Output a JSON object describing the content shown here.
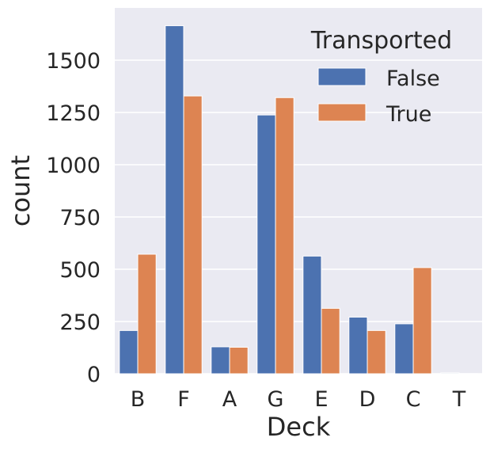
{
  "chart_data": {
    "type": "bar",
    "title": "",
    "xlabel": "Deck",
    "ylabel": "count",
    "categories": [
      "B",
      "F",
      "A",
      "G",
      "E",
      "D",
      "C",
      "T"
    ],
    "series": [
      {
        "name": "False",
        "color": "#4c72b0",
        "values": [
          207,
          1665,
          129,
          1238,
          563,
          271,
          239,
          4
        ]
      },
      {
        "name": "True",
        "color": "#dd8452",
        "values": [
          572,
          1329,
          127,
          1321,
          313,
          207,
          508,
          1
        ]
      }
    ],
    "yticks": [
      0,
      250,
      500,
      750,
      1000,
      1250,
      1500
    ],
    "ylim": [
      0,
      1750
    ],
    "grid": true,
    "legend": {
      "title": "Transported",
      "placement": "top-right"
    },
    "background": "#eaeaf2"
  }
}
